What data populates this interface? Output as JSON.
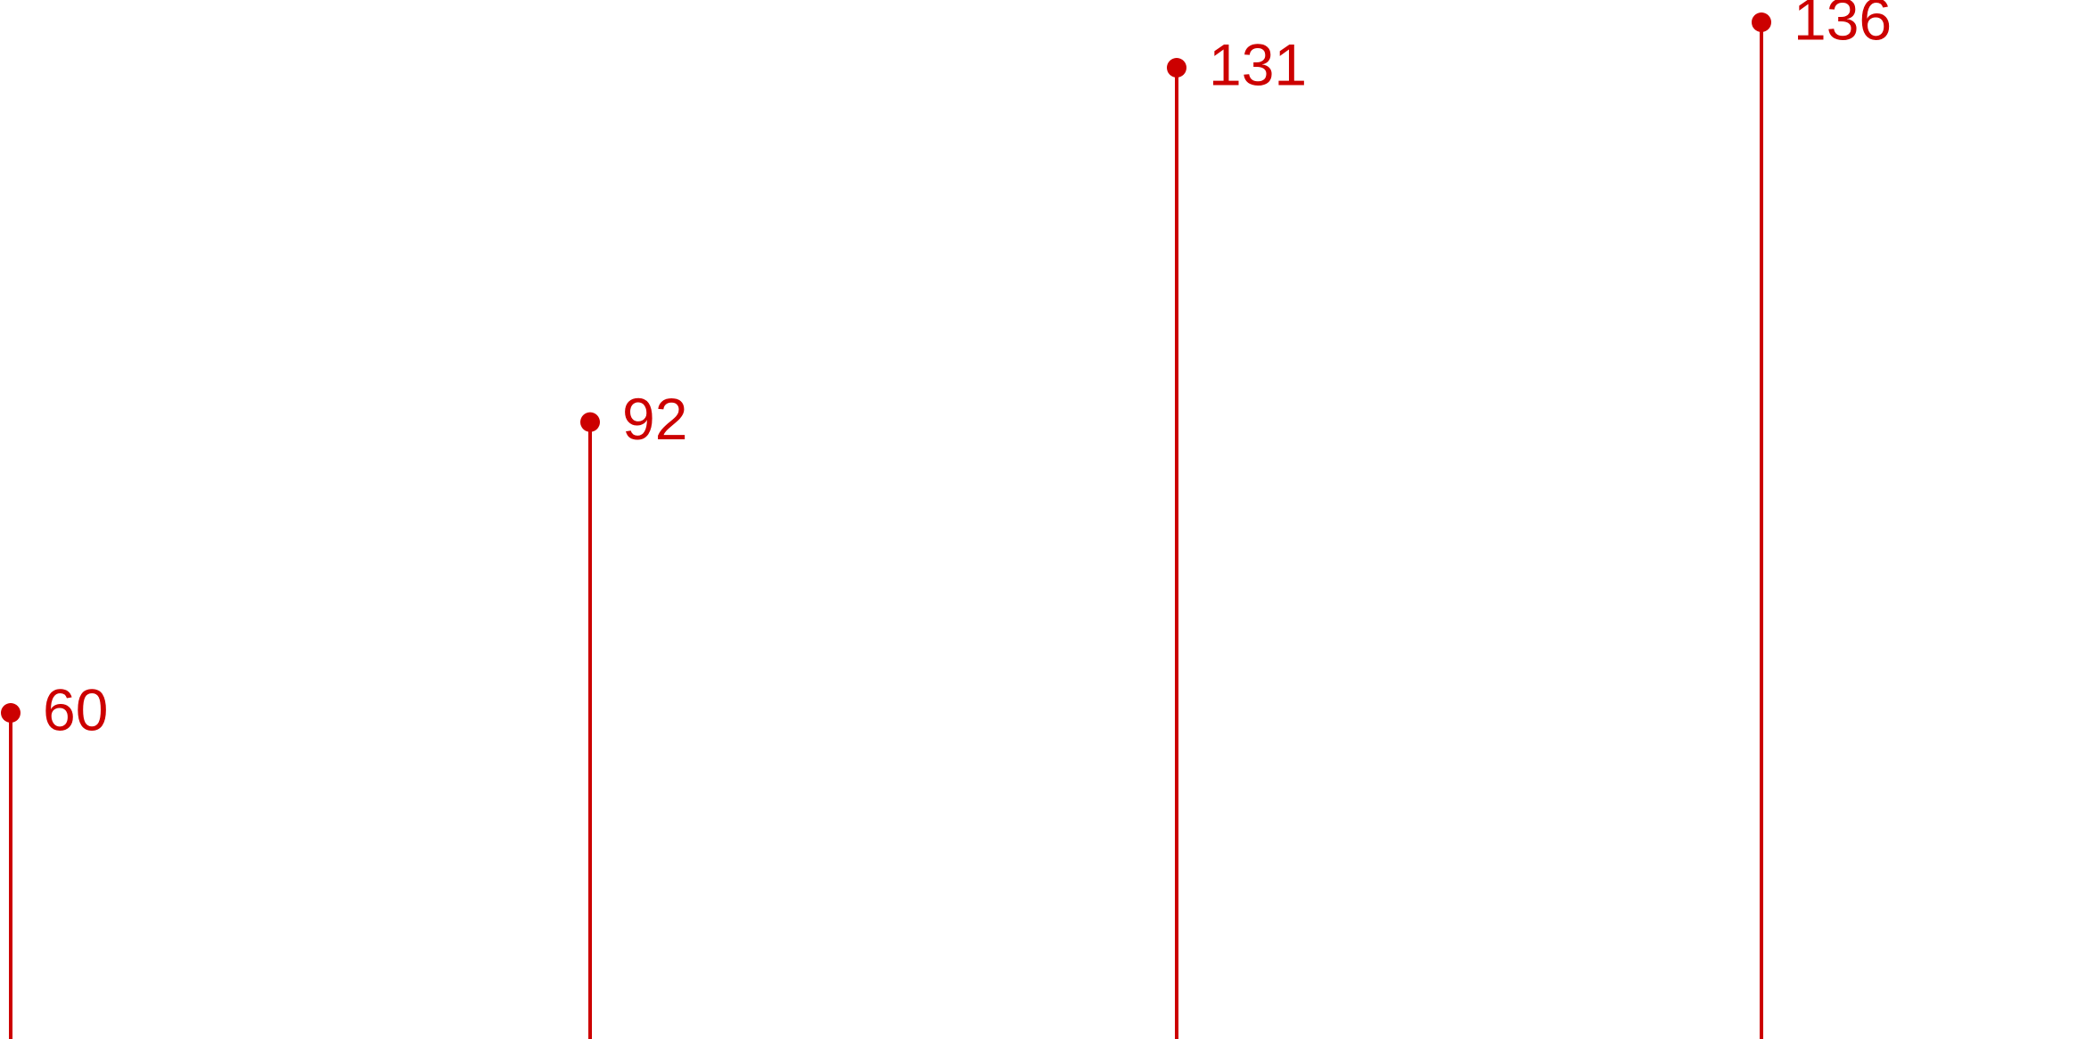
{
  "chart_data": {
    "type": "lollipop",
    "categories": [
      "",
      "",
      "",
      ""
    ],
    "values": [
      60,
      92,
      131,
      136
    ],
    "data_labels": [
      "60",
      "92",
      "131",
      "136"
    ],
    "title": "",
    "xlabel": "",
    "ylabel": "",
    "ylim": [
      0,
      136
    ],
    "grid": false,
    "legend": "none",
    "colors": {
      "series": "#cc0000"
    }
  }
}
